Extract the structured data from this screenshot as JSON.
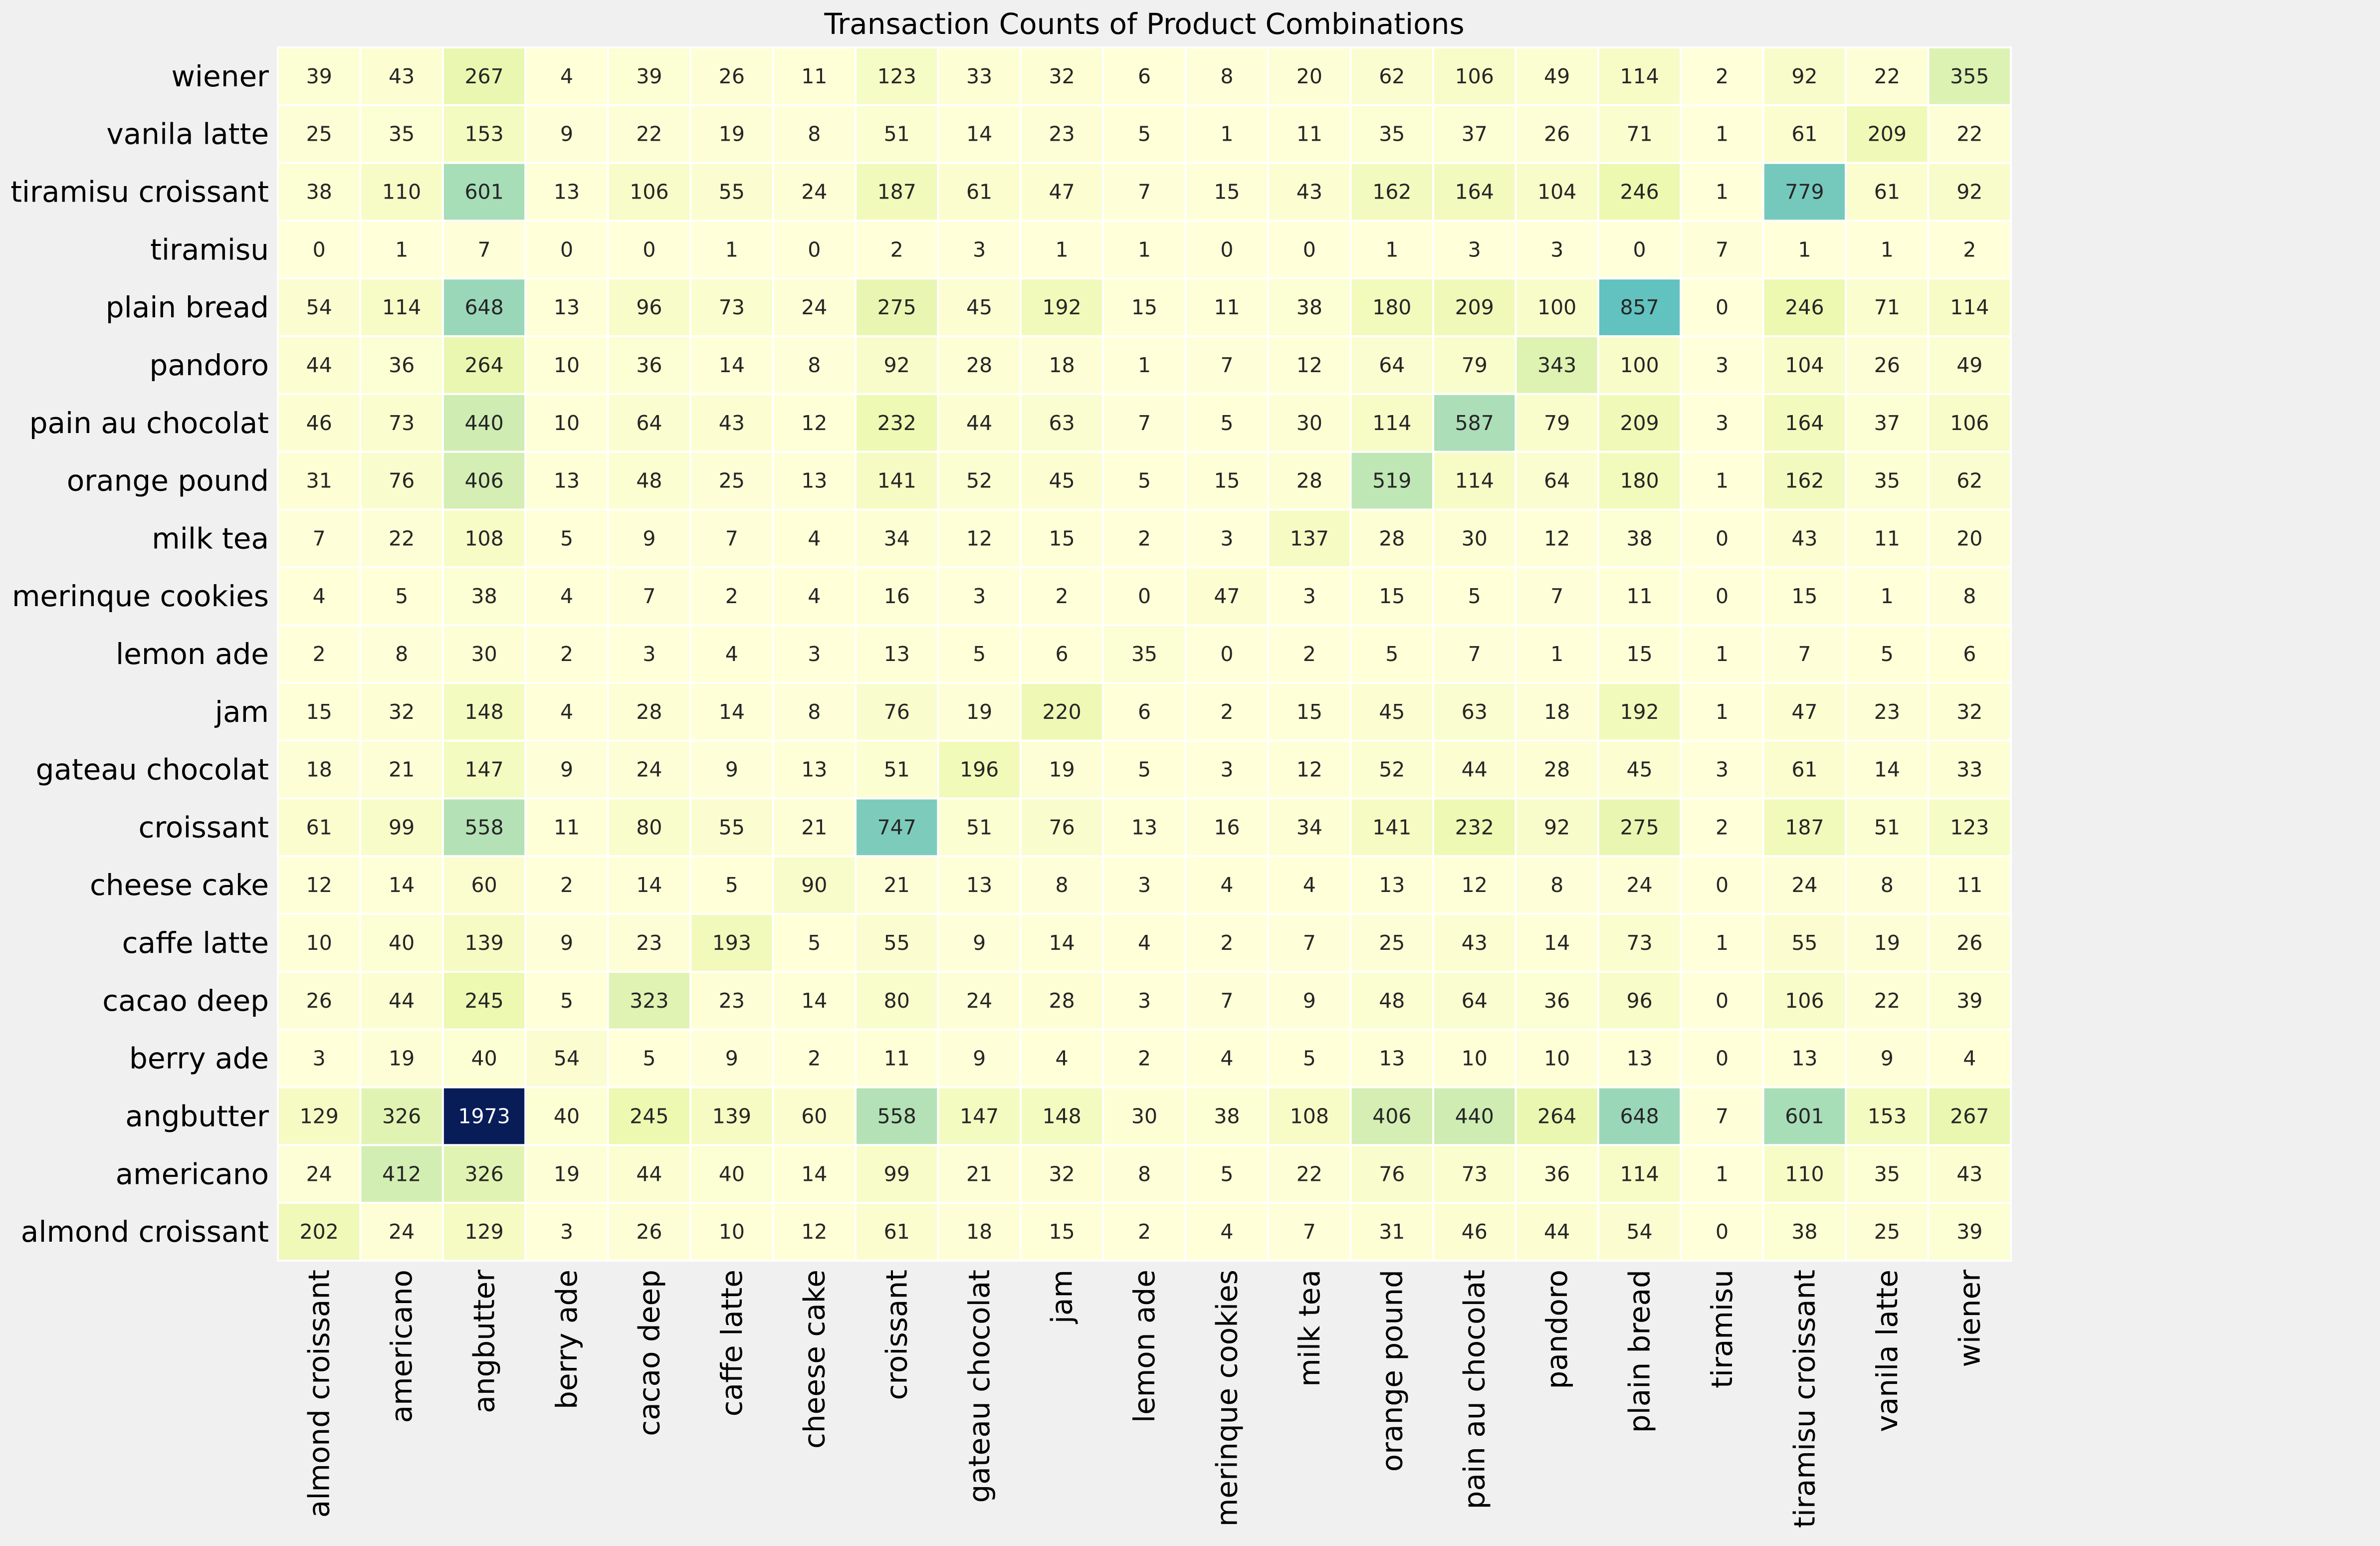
{
  "chart_data": {
    "type": "heatmap",
    "title": "Transaction Counts of Product Combinations",
    "xlabel": "",
    "ylabel": "",
    "x_categories": [
      "almond croissant",
      "americano",
      "angbutter",
      "berry ade",
      "cacao deep",
      "caffe latte",
      "cheese cake",
      "croissant",
      "gateau chocolat",
      "jam",
      "lemon ade",
      "merinque cookies",
      "milk tea",
      "orange pound",
      "pain au chocolat",
      "pandoro",
      "plain bread",
      "tiramisu",
      "tiramisu croissant",
      "vanila latte",
      "wiener"
    ],
    "y_categories": [
      "wiener",
      "vanila latte",
      "tiramisu croissant",
      "tiramisu",
      "plain bread",
      "pandoro",
      "pain au chocolat",
      "orange pound",
      "milk tea",
      "merinque cookies",
      "lemon ade",
      "jam",
      "gateau chocolat",
      "croissant",
      "cheese cake",
      "caffe latte",
      "cacao deep",
      "berry ade",
      "angbutter",
      "americano",
      "almond croissant"
    ],
    "values": [
      [
        39,
        43,
        267,
        4,
        39,
        26,
        11,
        123,
        33,
        32,
        6,
        8,
        20,
        62,
        106,
        49,
        114,
        2,
        92,
        22,
        355
      ],
      [
        25,
        35,
        153,
        9,
        22,
        19,
        8,
        51,
        14,
        23,
        5,
        1,
        11,
        35,
        37,
        26,
        71,
        1,
        61,
        209,
        22
      ],
      [
        38,
        110,
        601,
        13,
        106,
        55,
        24,
        187,
        61,
        47,
        7,
        15,
        43,
        162,
        164,
        104,
        246,
        1,
        779,
        61,
        92
      ],
      [
        0,
        1,
        7,
        0,
        0,
        1,
        0,
        2,
        3,
        1,
        1,
        0,
        0,
        1,
        3,
        3,
        0,
        7,
        1,
        1,
        2
      ],
      [
        54,
        114,
        648,
        13,
        96,
        73,
        24,
        275,
        45,
        192,
        15,
        11,
        38,
        180,
        209,
        100,
        857,
        0,
        246,
        71,
        114
      ],
      [
        44,
        36,
        264,
        10,
        36,
        14,
        8,
        92,
        28,
        18,
        1,
        7,
        12,
        64,
        79,
        343,
        100,
        3,
        104,
        26,
        49
      ],
      [
        46,
        73,
        440,
        10,
        64,
        43,
        12,
        232,
        44,
        63,
        7,
        5,
        30,
        114,
        587,
        79,
        209,
        3,
        164,
        37,
        106
      ],
      [
        31,
        76,
        406,
        13,
        48,
        25,
        13,
        141,
        52,
        45,
        5,
        15,
        28,
        519,
        114,
        64,
        180,
        1,
        162,
        35,
        62
      ],
      [
        7,
        22,
        108,
        5,
        9,
        7,
        4,
        34,
        12,
        15,
        2,
        3,
        137,
        28,
        30,
        12,
        38,
        0,
        43,
        11,
        20
      ],
      [
        4,
        5,
        38,
        4,
        7,
        2,
        4,
        16,
        3,
        2,
        0,
        47,
        3,
        15,
        5,
        7,
        11,
        0,
        15,
        1,
        8
      ],
      [
        2,
        8,
        30,
        2,
        3,
        4,
        3,
        13,
        5,
        6,
        35,
        0,
        2,
        5,
        7,
        1,
        15,
        1,
        7,
        5,
        6
      ],
      [
        15,
        32,
        148,
        4,
        28,
        14,
        8,
        76,
        19,
        220,
        6,
        2,
        15,
        45,
        63,
        18,
        192,
        1,
        47,
        23,
        32
      ],
      [
        18,
        21,
        147,
        9,
        24,
        9,
        13,
        51,
        196,
        19,
        5,
        3,
        12,
        52,
        44,
        28,
        45,
        3,
        61,
        14,
        33
      ],
      [
        61,
        99,
        558,
        11,
        80,
        55,
        21,
        747,
        51,
        76,
        13,
        16,
        34,
        141,
        232,
        92,
        275,
        2,
        187,
        51,
        123
      ],
      [
        12,
        14,
        60,
        2,
        14,
        5,
        90,
        21,
        13,
        8,
        3,
        4,
        4,
        13,
        12,
        8,
        24,
        0,
        24,
        8,
        11
      ],
      [
        10,
        40,
        139,
        9,
        23,
        193,
        5,
        55,
        9,
        14,
        4,
        2,
        7,
        25,
        43,
        14,
        73,
        1,
        55,
        19,
        26
      ],
      [
        26,
        44,
        245,
        5,
        323,
        23,
        14,
        80,
        24,
        28,
        3,
        7,
        9,
        48,
        64,
        36,
        96,
        0,
        106,
        22,
        39
      ],
      [
        3,
        19,
        40,
        54,
        5,
        9,
        2,
        11,
        9,
        4,
        2,
        4,
        5,
        13,
        10,
        10,
        13,
        0,
        13,
        9,
        4
      ],
      [
        129,
        326,
        1973,
        40,
        245,
        139,
        60,
        558,
        147,
        148,
        30,
        38,
        108,
        406,
        440,
        264,
        648,
        7,
        601,
        153,
        267
      ],
      [
        24,
        412,
        326,
        19,
        44,
        40,
        14,
        99,
        21,
        32,
        8,
        5,
        22,
        76,
        73,
        36,
        114,
        1,
        110,
        35,
        43
      ],
      [
        202,
        24,
        129,
        3,
        26,
        10,
        12,
        61,
        18,
        15,
        2,
        4,
        7,
        31,
        46,
        44,
        54,
        0,
        38,
        25,
        39
      ]
    ],
    "colormap": "YlGnBu",
    "color_range": [
      0,
      1973
    ],
    "grid": false,
    "colorbar": false
  }
}
